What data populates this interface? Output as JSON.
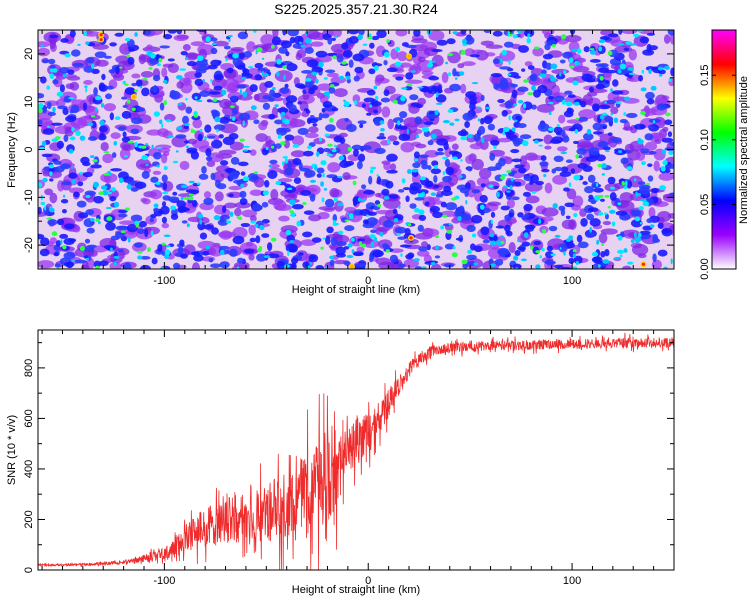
{
  "title": "S225.2025.357.21.30.R24",
  "colors": {
    "snr_line": "#ef2b2b",
    "axis": "#000000",
    "spec_bg": "#e7d2f2"
  },
  "chart_data": [
    {
      "type": "heatmap",
      "name": "spectrogram",
      "xlabel": "Height of straight line (km)",
      "ylabel": "Frequency (Hz)",
      "xlim": [
        -162,
        150
      ],
      "ylim": [
        -25,
        25
      ],
      "xticks": [
        -100,
        0,
        100
      ],
      "yticks": [
        -20,
        -10,
        0,
        10,
        20
      ],
      "colorbar": {
        "label": "Normalized spectral amplitude",
        "range": [
          0,
          0.185
        ],
        "ticks": [
          "0.00",
          "0.05",
          "0.10",
          "0.15"
        ],
        "tick_values": [
          0,
          0.05,
          0.1,
          0.15
        ],
        "stops": [
          "#ffffff",
          "#9900ff",
          "#0000ff",
          "#00ffff",
          "#00ff00",
          "#ffff00",
          "#ff0000",
          "#ff00ff"
        ]
      }
    },
    {
      "type": "line",
      "name": "snr",
      "xlabel": "Height of straight line (km)",
      "ylabel": "SNR (10 * v/v)",
      "xlim": [
        -162,
        150
      ],
      "ylim": [
        0,
        950
      ],
      "xticks": [
        -100,
        0,
        100
      ],
      "yticks": [
        0,
        200,
        400,
        600,
        800
      ],
      "series": [
        {
          "name": "SNR",
          "x": [
            -162,
            -150,
            -140,
            -130,
            -120,
            -110,
            -100,
            -95,
            -90,
            -85,
            -80,
            -75,
            -70,
            -65,
            -60,
            -55,
            -50,
            -45,
            -40,
            -35,
            -30,
            -25,
            -20,
            -17,
            -15,
            -13,
            -11,
            -9,
            -7,
            -5,
            -3,
            -1,
            0,
            2,
            4,
            6,
            8,
            10,
            12,
            14,
            16,
            18,
            20,
            22,
            25,
            28,
            30,
            35,
            40,
            50,
            60,
            70,
            80,
            90,
            100,
            110,
            120,
            130,
            140,
            150
          ],
          "values": [
            20,
            20,
            22,
            25,
            30,
            45,
            60,
            90,
            120,
            150,
            170,
            180,
            190,
            200,
            200,
            215,
            230,
            240,
            250,
            280,
            300,
            310,
            330,
            380,
            400,
            430,
            450,
            480,
            500,
            520,
            530,
            550,
            540,
            560,
            590,
            610,
            630,
            660,
            690,
            720,
            740,
            760,
            790,
            810,
            830,
            850,
            860,
            875,
            880,
            885,
            890,
            890,
            890,
            895,
            895,
            895,
            900,
            900,
            900,
            900
          ],
          "noise": [
            5,
            6,
            6,
            8,
            10,
            20,
            40,
            60,
            80,
            90,
            110,
            120,
            130,
            140,
            150,
            160,
            170,
            180,
            190,
            200,
            250,
            300,
            320,
            300,
            250,
            180,
            150,
            140,
            140,
            140,
            140,
            140,
            120,
            100,
            90,
            90,
            80,
            80,
            70,
            60,
            55,
            50,
            45,
            40,
            35,
            35,
            35,
            30,
            30,
            30,
            28,
            28,
            28,
            28,
            28,
            28,
            28,
            28,
            28,
            28
          ]
        }
      ]
    }
  ]
}
